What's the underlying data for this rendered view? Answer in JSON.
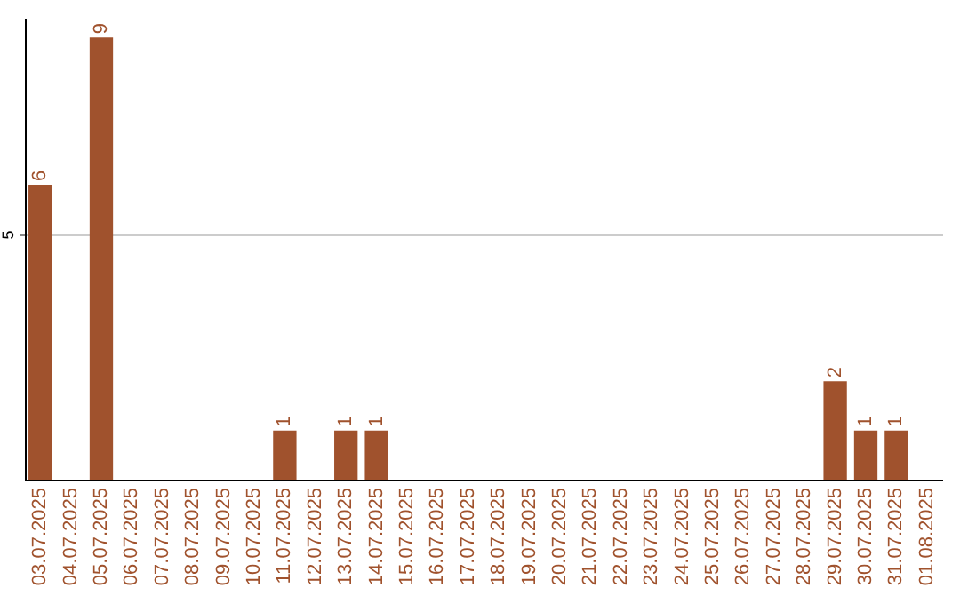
{
  "chart_data": {
    "type": "bar",
    "categories": [
      "03.07.2025",
      "04.07.2025",
      "05.07.2025",
      "06.07.2025",
      "07.07.2025",
      "08.07.2025",
      "09.07.2025",
      "10.07.2025",
      "11.07.2025",
      "12.07.2025",
      "13.07.2025",
      "14.07.2025",
      "15.07.2025",
      "16.07.2025",
      "17.07.2025",
      "18.07.2025",
      "19.07.2025",
      "20.07.2025",
      "21.07.2025",
      "22.07.2025",
      "23.07.2025",
      "24.07.2025",
      "25.07.2025",
      "26.07.2025",
      "27.07.2025",
      "28.07.2025",
      "29.07.2025",
      "30.07.2025",
      "31.07.2025",
      "01.08.2025"
    ],
    "values": [
      6,
      0,
      9,
      0,
      0,
      0,
      0,
      0,
      1,
      0,
      1,
      1,
      0,
      0,
      0,
      0,
      0,
      0,
      0,
      0,
      0,
      0,
      0,
      0,
      0,
      0,
      2,
      1,
      1,
      0
    ],
    "value_labels": [
      "6",
      null,
      "9",
      null,
      null,
      null,
      null,
      null,
      "1",
      null,
      "1",
      "1",
      null,
      null,
      null,
      null,
      null,
      null,
      null,
      null,
      null,
      null,
      null,
      null,
      null,
      null,
      "2",
      "1",
      "1",
      null
    ],
    "color": "#a0522d",
    "ylim": [
      0,
      9.4
    ],
    "yticks": [
      5
    ],
    "grid": "y"
  }
}
